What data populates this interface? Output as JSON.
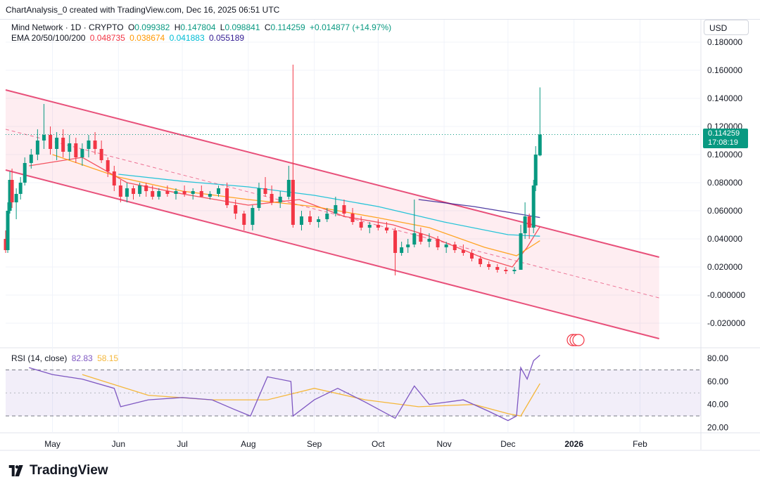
{
  "header": {
    "attribution": "ChartAnalysis_0 created with TradingView.com, Dec 16, 2025 06:51 UTC"
  },
  "legend": {
    "symbol": "Mind Network · 1D · CRYPTO",
    "open_label": "O",
    "open": "0.099382",
    "high_label": "H",
    "high": "0.147804",
    "low_label": "L",
    "low": "0.098841",
    "close_label": "C",
    "close": "0.114259",
    "change": "+0.014877 (+14.97%)",
    "ema_label": "EMA 20/50/100/200",
    "ema20": "0.048735",
    "ema50": "0.038674",
    "ema100": "0.041883",
    "ema200": "0.055189"
  },
  "rsi_legend": {
    "label": "RSI (14, close)",
    "value": "82.83",
    "ma": "58.15"
  },
  "currency": "USD",
  "last_price": {
    "value": "0.114259",
    "countdown": "17:08:19"
  },
  "brand": "TradingView",
  "colors": {
    "up": "#089981",
    "down": "#f23645",
    "ema20": "#f23645",
    "ema50": "#ff9800",
    "ema100": "#00bcd4",
    "ema200": "#311b92",
    "channel": "#e8507a",
    "rsi": "#7e57c2",
    "rsi_ma": "#f5b73a"
  },
  "chart_data": {
    "type": "candlestick",
    "price_axis": {
      "ticks": [
        "0.180000",
        "0.160000",
        "0.140000",
        "0.120000",
        "0.100000",
        "0.080000",
        "0.060000",
        "0.040000",
        "0.020000",
        "-0.000000",
        "-0.020000"
      ],
      "range": [
        -0.032,
        0.186
      ]
    },
    "time_axis": {
      "labels": [
        "May",
        "Jun",
        "Jul",
        "Aug",
        "Sep",
        "Oct",
        "Nov",
        "Dec",
        "2026",
        "Feb"
      ],
      "start": "2025-04-09",
      "end": "2026-02-23"
    },
    "channel": {
      "upper": [
        [
          "2025-04-09",
          0.146
        ],
        [
          "2026-02-10",
          0.027
        ]
      ],
      "lower": [
        [
          "2025-04-09",
          0.089
        ],
        [
          "2026-02-10",
          -0.031
        ]
      ],
      "mid": [
        [
          "2025-04-09",
          0.118
        ],
        [
          "2026-02-10",
          -0.002
        ]
      ]
    },
    "series": [
      {
        "name": "EMA 20",
        "points": [
          [
            "2025-04-20",
            0.092
          ],
          [
            "2025-05-15",
            0.098
          ],
          [
            "2025-06-05",
            0.08
          ],
          [
            "2025-07-01",
            0.072
          ],
          [
            "2025-08-01",
            0.064
          ],
          [
            "2025-08-25",
            0.068
          ],
          [
            "2025-09-15",
            0.056
          ],
          [
            "2025-10-08",
            0.05
          ],
          [
            "2025-10-25",
            0.042
          ],
          [
            "2025-11-20",
            0.026
          ],
          [
            "2025-12-03",
            0.02
          ],
          [
            "2025-12-10",
            0.034
          ],
          [
            "2025-12-16",
            0.0487
          ]
        ]
      },
      {
        "name": "EMA 50",
        "points": [
          [
            "2025-05-01",
            0.1
          ],
          [
            "2025-06-01",
            0.084
          ],
          [
            "2025-07-01",
            0.074
          ],
          [
            "2025-08-01",
            0.068
          ],
          [
            "2025-09-01",
            0.063
          ],
          [
            "2025-10-01",
            0.055
          ],
          [
            "2025-10-25",
            0.048
          ],
          [
            "2025-11-20",
            0.034
          ],
          [
            "2025-12-05",
            0.028
          ],
          [
            "2025-12-16",
            0.0387
          ]
        ]
      },
      {
        "name": "EMA 100",
        "points": [
          [
            "2025-06-01",
            0.086
          ],
          [
            "2025-07-01",
            0.081
          ],
          [
            "2025-08-01",
            0.077
          ],
          [
            "2025-09-01",
            0.071
          ],
          [
            "2025-10-01",
            0.063
          ],
          [
            "2025-11-01",
            0.052
          ],
          [
            "2025-12-01",
            0.043
          ],
          [
            "2025-12-16",
            0.0419
          ]
        ]
      },
      {
        "name": "EMA 200",
        "points": [
          [
            "2025-10-20",
            0.068
          ],
          [
            "2025-11-15",
            0.063
          ],
          [
            "2025-12-05",
            0.058
          ],
          [
            "2025-12-16",
            0.0552
          ]
        ]
      }
    ],
    "candles": [
      [
        "2025-04-09",
        0.04,
        0.046,
        0.03,
        0.032
      ],
      [
        "2025-04-10",
        0.032,
        0.066,
        0.03,
        0.06
      ],
      [
        "2025-04-11",
        0.06,
        0.088,
        0.058,
        0.082
      ],
      [
        "2025-04-12",
        0.082,
        0.09,
        0.062,
        0.066
      ],
      [
        "2025-04-14",
        0.066,
        0.076,
        0.054,
        0.072
      ],
      [
        "2025-04-16",
        0.072,
        0.084,
        0.068,
        0.08
      ],
      [
        "2025-04-18",
        0.08,
        0.098,
        0.078,
        0.094
      ],
      [
        "2025-04-21",
        0.094,
        0.104,
        0.09,
        0.1
      ],
      [
        "2025-04-24",
        0.1,
        0.118,
        0.096,
        0.11
      ],
      [
        "2025-04-27",
        0.11,
        0.136,
        0.104,
        0.114
      ],
      [
        "2025-04-30",
        0.114,
        0.12,
        0.1,
        0.104
      ],
      [
        "2025-05-03",
        0.104,
        0.116,
        0.096,
        0.112
      ],
      [
        "2025-05-06",
        0.112,
        0.118,
        0.098,
        0.102
      ],
      [
        "2025-05-09",
        0.102,
        0.114,
        0.096,
        0.108
      ],
      [
        "2025-05-12",
        0.108,
        0.112,
        0.094,
        0.098
      ],
      [
        "2025-05-15",
        0.098,
        0.108,
        0.092,
        0.104
      ],
      [
        "2025-05-18",
        0.104,
        0.114,
        0.098,
        0.11
      ],
      [
        "2025-05-21",
        0.11,
        0.116,
        0.1,
        0.104
      ],
      [
        "2025-05-24",
        0.104,
        0.11,
        0.094,
        0.096
      ],
      [
        "2025-05-27",
        0.096,
        0.098,
        0.084,
        0.088
      ],
      [
        "2025-05-30",
        0.088,
        0.092,
        0.074,
        0.078
      ],
      [
        "2025-06-02",
        0.078,
        0.082,
        0.066,
        0.07
      ],
      [
        "2025-06-05",
        0.07,
        0.08,
        0.066,
        0.076
      ],
      [
        "2025-06-08",
        0.076,
        0.078,
        0.068,
        0.072
      ],
      [
        "2025-06-11",
        0.072,
        0.08,
        0.07,
        0.078
      ],
      [
        "2025-06-14",
        0.078,
        0.08,
        0.07,
        0.074
      ],
      [
        "2025-06-17",
        0.074,
        0.078,
        0.068,
        0.07
      ],
      [
        "2025-06-20",
        0.07,
        0.076,
        0.068,
        0.074
      ],
      [
        "2025-06-24",
        0.074,
        0.078,
        0.07,
        0.072
      ],
      [
        "2025-06-28",
        0.072,
        0.076,
        0.068,
        0.074
      ],
      [
        "2025-07-02",
        0.074,
        0.078,
        0.07,
        0.072
      ],
      [
        "2025-07-06",
        0.072,
        0.076,
        0.068,
        0.074
      ],
      [
        "2025-07-10",
        0.074,
        0.078,
        0.07,
        0.07
      ],
      [
        "2025-07-14",
        0.07,
        0.074,
        0.068,
        0.072
      ],
      [
        "2025-07-18",
        0.072,
        0.078,
        0.07,
        0.076
      ],
      [
        "2025-07-22",
        0.076,
        0.08,
        0.062,
        0.064
      ],
      [
        "2025-07-26",
        0.064,
        0.068,
        0.054,
        0.058
      ],
      [
        "2025-07-30",
        0.058,
        0.06,
        0.046,
        0.05
      ],
      [
        "2025-08-03",
        0.05,
        0.064,
        0.046,
        0.062
      ],
      [
        "2025-08-06",
        0.062,
        0.08,
        0.06,
        0.076
      ],
      [
        "2025-08-09",
        0.076,
        0.084,
        0.07,
        0.072
      ],
      [
        "2025-08-12",
        0.072,
        0.078,
        0.064,
        0.066
      ],
      [
        "2025-08-16",
        0.066,
        0.074,
        0.062,
        0.07
      ],
      [
        "2025-08-20",
        0.07,
        0.092,
        0.068,
        0.082
      ],
      [
        "2025-08-22",
        0.082,
        0.164,
        0.048,
        0.05
      ],
      [
        "2025-08-26",
        0.05,
        0.06,
        0.046,
        0.056
      ],
      [
        "2025-08-30",
        0.056,
        0.06,
        0.05,
        0.052
      ],
      [
        "2025-09-03",
        0.052,
        0.056,
        0.048,
        0.054
      ],
      [
        "2025-09-07",
        0.054,
        0.062,
        0.052,
        0.058
      ],
      [
        "2025-09-11",
        0.058,
        0.07,
        0.056,
        0.064
      ],
      [
        "2025-09-15",
        0.064,
        0.068,
        0.056,
        0.058
      ],
      [
        "2025-09-19",
        0.058,
        0.062,
        0.05,
        0.052
      ],
      [
        "2025-09-23",
        0.052,
        0.056,
        0.046,
        0.048
      ],
      [
        "2025-09-27",
        0.048,
        0.052,
        0.044,
        0.05
      ],
      [
        "2025-10-01",
        0.05,
        0.054,
        0.046,
        0.048
      ],
      [
        "2025-10-05",
        0.048,
        0.052,
        0.044,
        0.046
      ],
      [
        "2025-10-09",
        0.046,
        0.048,
        0.014,
        0.03
      ],
      [
        "2025-10-12",
        0.03,
        0.038,
        0.028,
        0.034
      ],
      [
        "2025-10-15",
        0.034,
        0.04,
        0.03,
        0.036
      ],
      [
        "2025-10-18",
        0.036,
        0.068,
        0.034,
        0.044
      ],
      [
        "2025-10-21",
        0.044,
        0.048,
        0.036,
        0.038
      ],
      [
        "2025-10-25",
        0.038,
        0.044,
        0.034,
        0.04
      ],
      [
        "2025-10-29",
        0.04,
        0.042,
        0.032,
        0.034
      ],
      [
        "2025-11-02",
        0.034,
        0.038,
        0.03,
        0.036
      ],
      [
        "2025-11-06",
        0.036,
        0.038,
        0.03,
        0.032
      ],
      [
        "2025-11-10",
        0.032,
        0.036,
        0.028,
        0.03
      ],
      [
        "2025-11-14",
        0.03,
        0.032,
        0.024,
        0.026
      ],
      [
        "2025-11-18",
        0.026,
        0.028,
        0.02,
        0.022
      ],
      [
        "2025-11-22",
        0.022,
        0.024,
        0.018,
        0.02
      ],
      [
        "2025-11-26",
        0.02,
        0.022,
        0.016,
        0.018
      ],
      [
        "2025-11-30",
        0.018,
        0.02,
        0.015,
        0.017
      ],
      [
        "2025-12-04",
        0.017,
        0.02,
        0.015,
        0.018
      ],
      [
        "2025-12-07",
        0.018,
        0.05,
        0.018,
        0.044
      ],
      [
        "2025-12-09",
        0.044,
        0.066,
        0.04,
        0.056
      ],
      [
        "2025-12-11",
        0.056,
        0.058,
        0.04,
        0.048
      ],
      [
        "2025-12-13",
        0.048,
        0.082,
        0.044,
        0.078
      ],
      [
        "2025-12-14",
        0.078,
        0.106,
        0.074,
        0.1
      ],
      [
        "2025-12-16",
        0.0994,
        0.1478,
        0.0988,
        0.1143
      ]
    ],
    "rsi": {
      "axis_ticks": [
        "80.00",
        "60.00",
        "40.00",
        "20.00"
      ],
      "range": [
        16,
        88
      ],
      "bands": [
        70,
        30
      ],
      "rsi_points": [
        [
          "2025-04-20",
          72
        ],
        [
          "2025-05-01",
          66
        ],
        [
          "2025-05-15",
          62
        ],
        [
          "2025-05-30",
          54
        ],
        [
          "2025-06-02",
          38
        ],
        [
          "2025-06-15",
          44
        ],
        [
          "2025-07-01",
          46
        ],
        [
          "2025-07-15",
          44
        ],
        [
          "2025-07-25",
          36
        ],
        [
          "2025-08-02",
          30
        ],
        [
          "2025-08-10",
          64
        ],
        [
          "2025-08-21",
          60
        ],
        [
          "2025-08-22",
          30
        ],
        [
          "2025-09-01",
          44
        ],
        [
          "2025-09-12",
          54
        ],
        [
          "2025-09-25",
          42
        ],
        [
          "2025-10-09",
          28
        ],
        [
          "2025-10-18",
          56
        ],
        [
          "2025-10-25",
          40
        ],
        [
          "2025-11-10",
          44
        ],
        [
          "2025-11-22",
          34
        ],
        [
          "2025-12-01",
          26
        ],
        [
          "2025-12-05",
          30
        ],
        [
          "2025-12-07",
          72
        ],
        [
          "2025-12-10",
          62
        ],
        [
          "2025-12-13",
          78
        ],
        [
          "2025-12-16",
          82.83
        ]
      ],
      "ma_points": [
        [
          "2025-05-15",
          66
        ],
        [
          "2025-06-15",
          48
        ],
        [
          "2025-07-15",
          44
        ],
        [
          "2025-08-10",
          44
        ],
        [
          "2025-09-01",
          54
        ],
        [
          "2025-09-25",
          44
        ],
        [
          "2025-10-20",
          38
        ],
        [
          "2025-11-15",
          40
        ],
        [
          "2025-12-01",
          32
        ],
        [
          "2025-12-07",
          30
        ],
        [
          "2025-12-16",
          58.15
        ]
      ]
    }
  }
}
